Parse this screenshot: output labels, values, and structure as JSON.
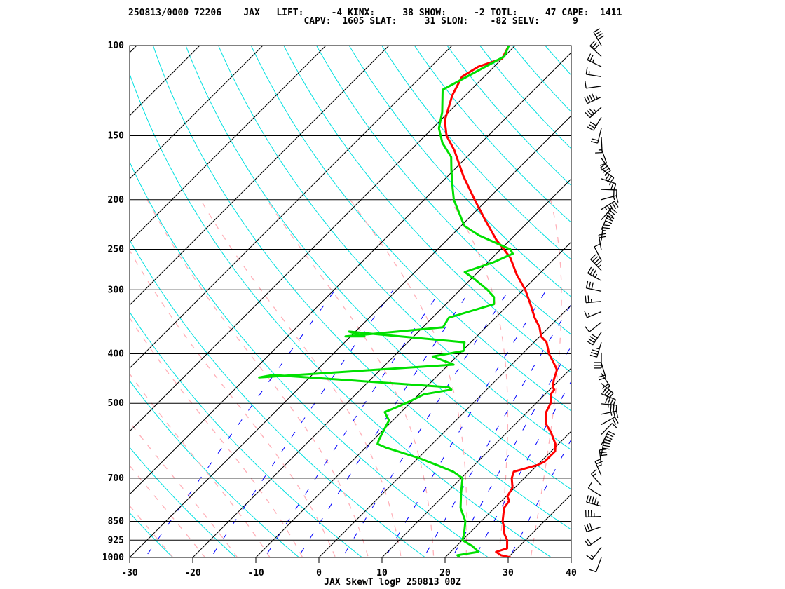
{
  "header": {
    "line1": "250813/0000 72206    JAX   LIFT:     -4 KINX:     38 SHOW:     -2 TOTL:     47 CAPE:  1411",
    "line2": "                                CAPV:  1605 SLAT:     31 SLON:    -82 SELV:      9"
  },
  "footer_title": "JAX SkewT logP 250813 00Z",
  "chart_data": {
    "type": "line",
    "title": "JAX SkewT logP 250813 00Z",
    "station": "JAX",
    "station_id": "72206",
    "indices": {
      "LIFT": -4,
      "KINX": 38,
      "SHOW": -2,
      "TOTL": 47,
      "CAPE": 1411,
      "CAPV": 1605,
      "SLAT": 31,
      "SLON": -82,
      "SELV": 9
    },
    "y_axis": {
      "scale": "log",
      "ylim": [
        1000,
        100
      ],
      "ticks": [
        100,
        150,
        200,
        250,
        300,
        400,
        500,
        700,
        850,
        925,
        1000
      ]
    },
    "x_axis": {
      "xlim": [
        -30,
        40
      ],
      "ticks": [
        -30,
        -20,
        -10,
        0,
        10,
        20,
        30,
        40
      ]
    },
    "colors": {
      "temperature": "#ff0000",
      "dewpoint": "#00e000",
      "isotherm": "#000000",
      "isobar": "#000000",
      "dry_adiabat": "#00e0e0",
      "moist_adiabat": "#ffb0b8",
      "mixing_ratio": "#0000ff",
      "wind_barb": "#000000"
    },
    "series": [
      {
        "name": "temperature",
        "values": [
          [
            1000,
            30.4
          ],
          [
            990,
            28.5
          ],
          [
            975,
            27.2
          ],
          [
            960,
            28.4
          ],
          [
            925,
            27.1
          ],
          [
            900,
            25.7
          ],
          [
            870,
            24.4
          ],
          [
            850,
            23.4
          ],
          [
            800,
            21.5
          ],
          [
            775,
            21.2
          ],
          [
            760,
            20.2
          ],
          [
            730,
            19.6
          ],
          [
            700,
            18.0
          ],
          [
            680,
            17.3
          ],
          [
            660,
            20.0
          ],
          [
            650,
            20.6
          ],
          [
            620,
            20.6
          ],
          [
            600,
            19.5
          ],
          [
            570,
            17.0
          ],
          [
            550,
            15.0
          ],
          [
            520,
            13.0
          ],
          [
            500,
            12.3
          ],
          [
            480,
            10.9
          ],
          [
            470,
            10.7
          ],
          [
            465,
            10.1
          ],
          [
            450,
            9.1
          ],
          [
            430,
            8.0
          ],
          [
            420,
            6.8
          ],
          [
            400,
            4.2
          ],
          [
            380,
            2.0
          ],
          [
            370,
            0.2
          ],
          [
            355,
            -1.5
          ],
          [
            340,
            -3.8
          ],
          [
            320,
            -6.6
          ],
          [
            300,
            -9.7
          ],
          [
            280,
            -13.5
          ],
          [
            260,
            -17.1
          ],
          [
            250,
            -19.5
          ],
          [
            240,
            -22.1
          ],
          [
            220,
            -26.9
          ],
          [
            200,
            -32.0
          ],
          [
            180,
            -37.5
          ],
          [
            160,
            -43.1
          ],
          [
            150,
            -46.6
          ],
          [
            140,
            -49.3
          ],
          [
            125,
            -52.1
          ],
          [
            115,
            -53.5
          ],
          [
            110,
            -52.5
          ],
          [
            106,
            -50.0
          ],
          [
            100,
            -51.0
          ]
        ]
      },
      {
        "name": "dewpoint",
        "values": [
          [
            1000,
            22.3
          ],
          [
            990,
            21.6
          ],
          [
            975,
            24.4
          ],
          [
            950,
            22.5
          ],
          [
            925,
            20.0
          ],
          [
            900,
            19.3
          ],
          [
            850,
            17.5
          ],
          [
            800,
            14.6
          ],
          [
            750,
            12.4
          ],
          [
            700,
            10.2
          ],
          [
            680,
            7.7
          ],
          [
            660,
            4.1
          ],
          [
            640,
            0.2
          ],
          [
            610,
            -6.8
          ],
          [
            600,
            -8.7
          ],
          [
            590,
            -9.1
          ],
          [
            570,
            -9.7
          ],
          [
            540,
            -10.6
          ],
          [
            520,
            -12.6
          ],
          [
            510,
            -11.6
          ],
          [
            495,
            -10.3
          ],
          [
            480,
            -9.2
          ],
          [
            470,
            -5.6
          ],
          [
            465,
            -6.4
          ],
          [
            440,
            -36.2
          ],
          [
            445,
            -38.0
          ],
          [
            420,
            -9.2
          ],
          [
            405,
            -13.8
          ],
          [
            395,
            -9.8
          ],
          [
            380,
            -11.0
          ],
          [
            362,
            -31.0
          ],
          [
            370,
            -27.8
          ],
          [
            370,
            -30.8
          ],
          [
            355,
            -16.8
          ],
          [
            340,
            -17.4
          ],
          [
            320,
            -12.4
          ],
          [
            310,
            -13.5
          ],
          [
            300,
            -15.7
          ],
          [
            285,
            -19.7
          ],
          [
            277,
            -22.1
          ],
          [
            265,
            -19.1
          ],
          [
            255,
            -17.4
          ],
          [
            250,
            -18.5
          ],
          [
            235,
            -25.6
          ],
          [
            225,
            -29.5
          ],
          [
            210,
            -32.9
          ],
          [
            200,
            -35.3
          ],
          [
            190,
            -37.3
          ],
          [
            175,
            -40.4
          ],
          [
            165,
            -42.5
          ],
          [
            155,
            -46.1
          ],
          [
            145,
            -49.0
          ],
          [
            135,
            -51.0
          ],
          [
            122,
            -54.5
          ],
          [
            118,
            -53.5
          ],
          [
            105,
            -50.0
          ],
          [
            100,
            -51.0
          ]
        ]
      }
    ],
    "winds_note": "wind barbs shown along right side from 1000 to 100 hPa"
  }
}
